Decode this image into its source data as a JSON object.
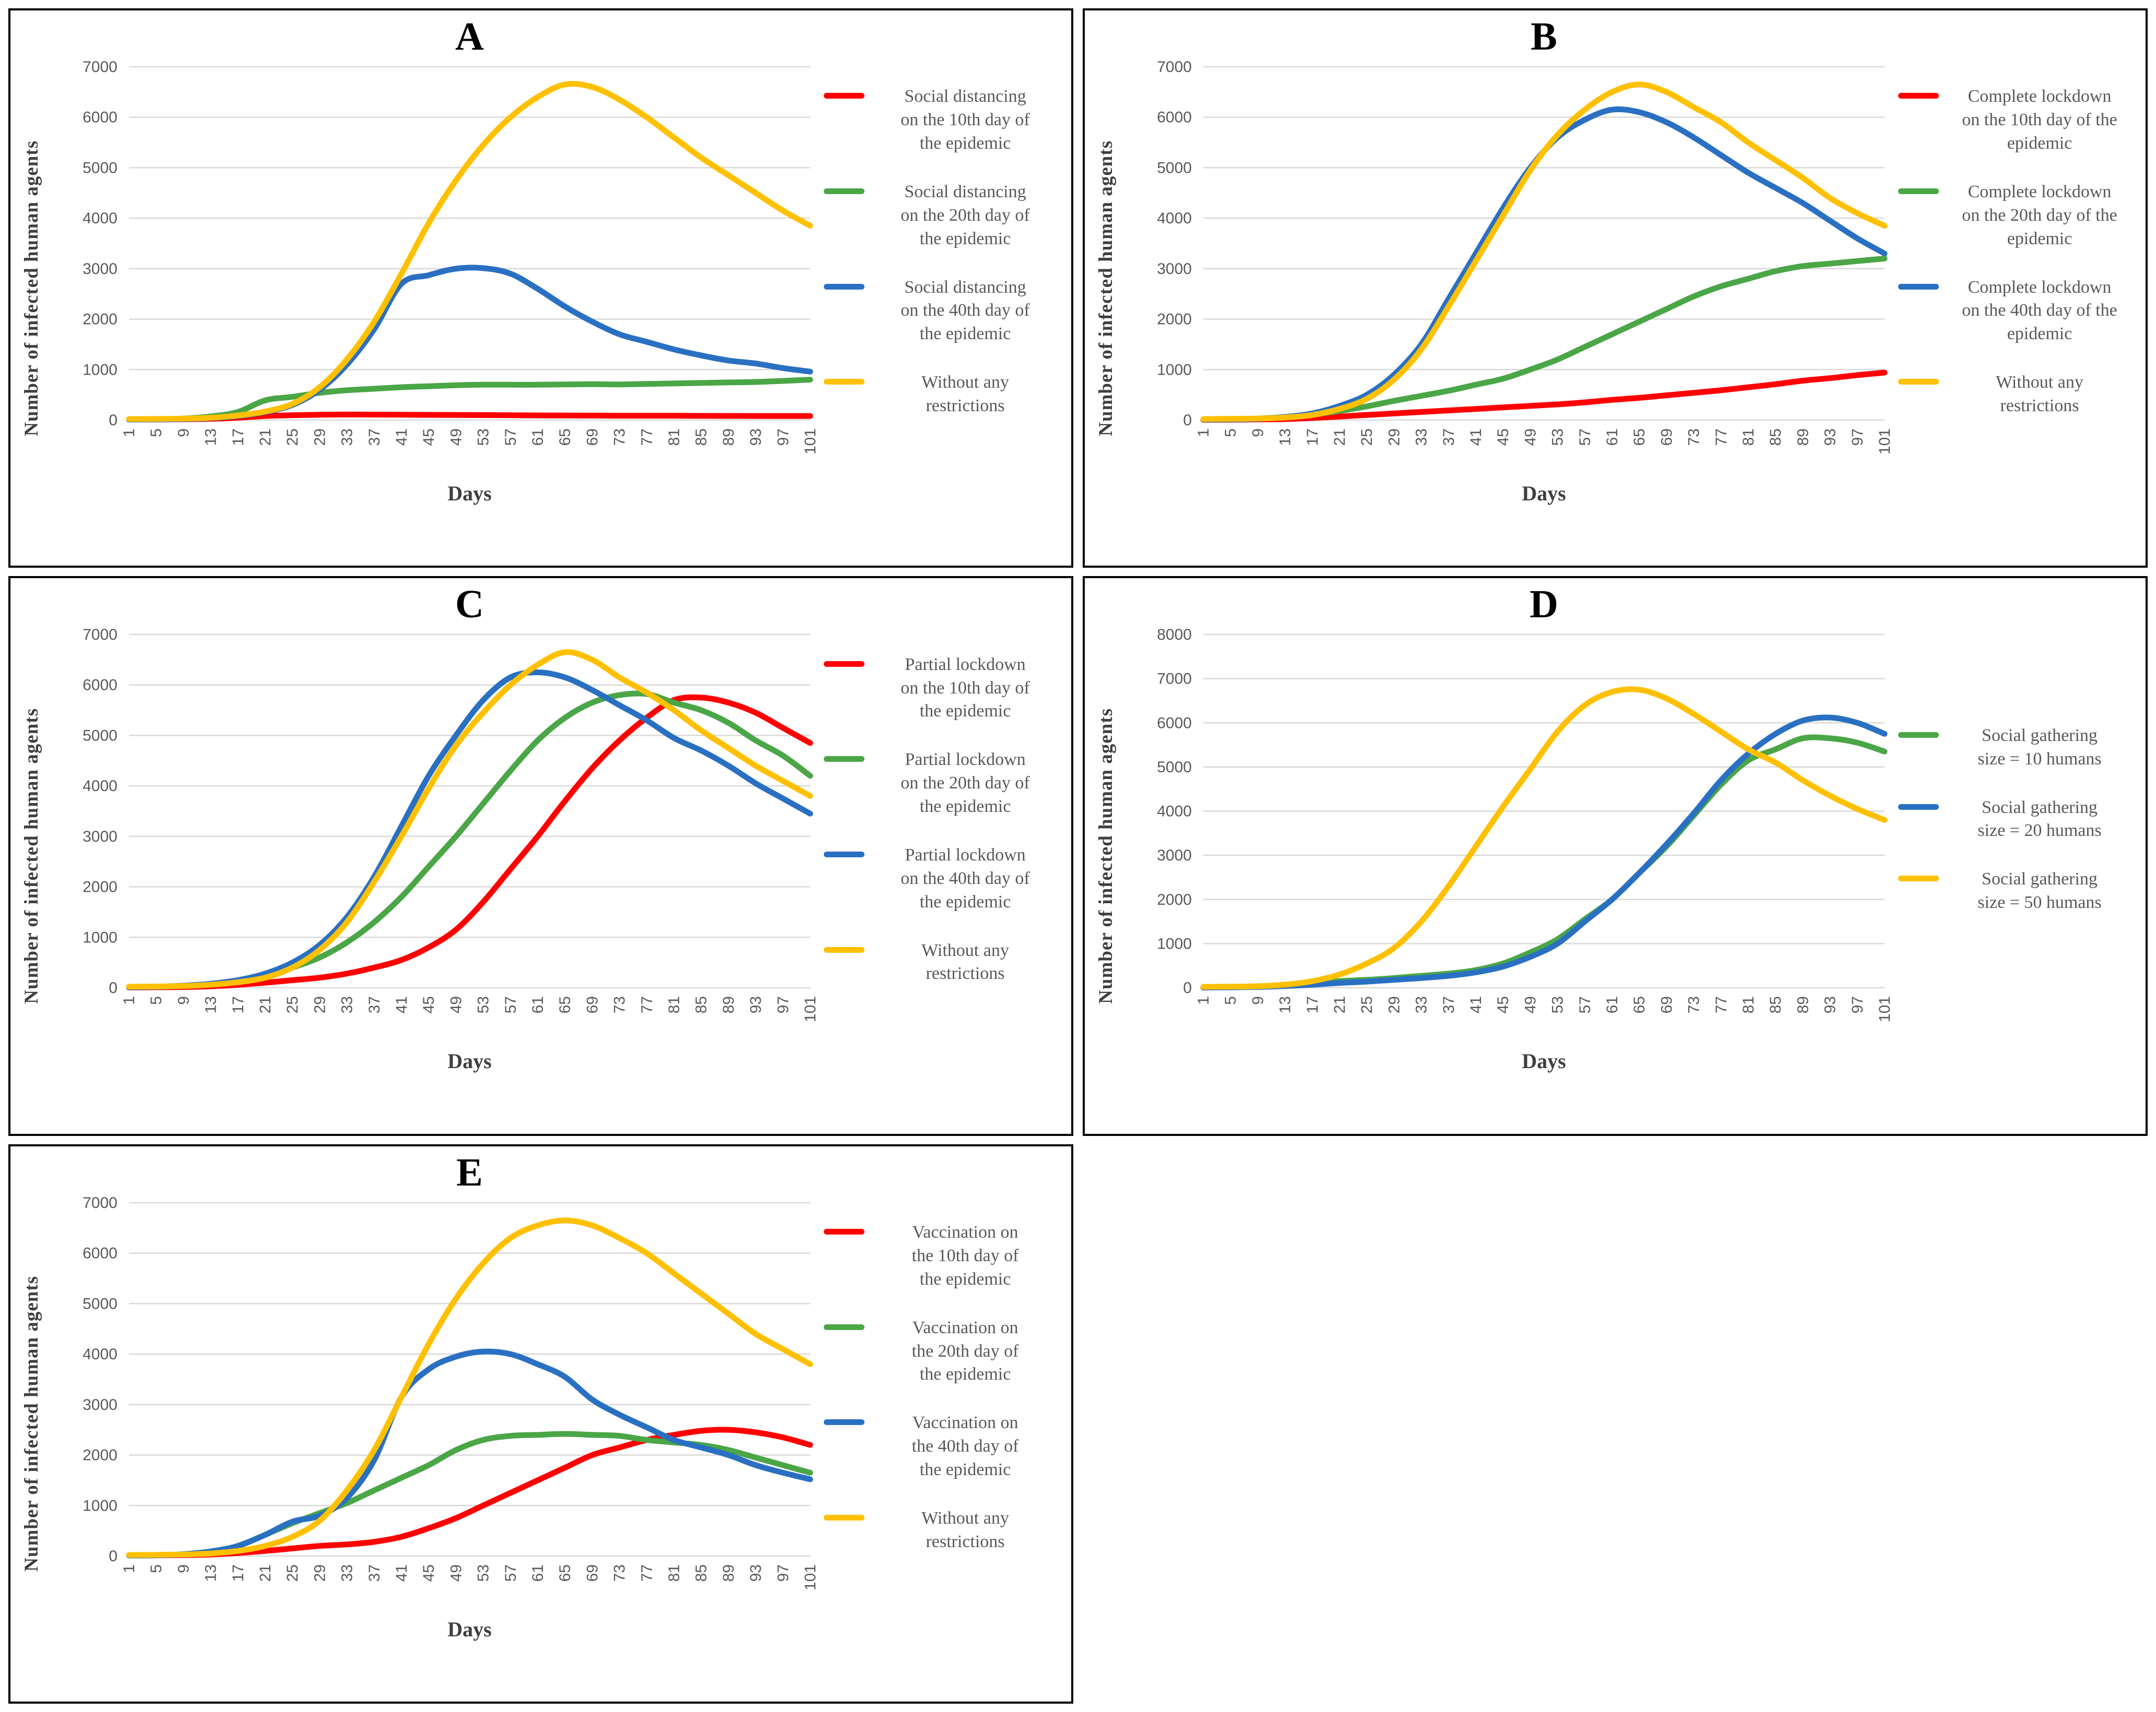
{
  "figure": {
    "ylabel": "Number of infected human agents",
    "xlabel": "Days",
    "panel_letters": [
      "A",
      "B",
      "C",
      "D",
      "E"
    ]
  },
  "palette": {
    "red": "#FF0000",
    "green": "#4AA646",
    "blue": "#2A70C2",
    "yellow": "#FFC000",
    "gridline": "#D9D9D9",
    "tick_text": "#595959",
    "axis_title_text": "#3F3F3F",
    "panel_letter_text": "#000000",
    "panel_border": "#000000"
  },
  "chart_data": [
    {
      "title": "A",
      "type": "line",
      "xlabel": "Days",
      "ylabel": "Number of infected human agents",
      "xlim": [
        1,
        101
      ],
      "ylim": [
        0,
        7000
      ],
      "ytick_step": 1000,
      "grid": true,
      "legend_position": "right",
      "x": [
        1,
        5,
        9,
        13,
        17,
        21,
        25,
        29,
        33,
        37,
        41,
        45,
        49,
        53,
        57,
        61,
        65,
        69,
        73,
        77,
        81,
        85,
        89,
        93,
        97,
        101
      ],
      "series": [
        {
          "name": "Social distancing\non the 10th day of\nthe epidemic",
          "color": "#FF0000",
          "values": [
            10,
            12,
            16,
            25,
            45,
            80,
            95,
            105,
            110,
            108,
            105,
            102,
            100,
            98,
            95,
            92,
            90,
            88,
            86,
            85,
            85,
            83,
            82,
            81,
            80,
            80
          ]
        },
        {
          "name": "Social distancing\non the 20th day of\nthe epidemic",
          "color": "#4AA646",
          "values": [
            10,
            15,
            30,
            70,
            160,
            390,
            460,
            540,
            590,
            620,
            650,
            670,
            690,
            700,
            700,
            700,
            705,
            710,
            705,
            715,
            725,
            735,
            745,
            755,
            775,
            800
          ]
        },
        {
          "name": "Social distancing\non the 40th day of\nthe epidemic",
          "color": "#2A70C2",
          "values": [
            10,
            12,
            20,
            40,
            80,
            160,
            300,
            600,
            1100,
            1800,
            2700,
            2870,
            3000,
            3010,
            2900,
            2600,
            2250,
            1950,
            1700,
            1550,
            1400,
            1280,
            1180,
            1120,
            1030,
            960
          ]
        },
        {
          "name": "Without any\nrestrictions",
          "color": "#FFC000",
          "values": [
            20,
            22,
            28,
            45,
            90,
            170,
            320,
            650,
            1200,
            1950,
            2900,
            3900,
            4750,
            5450,
            6000,
            6400,
            6650,
            6600,
            6350,
            6000,
            5600,
            5200,
            4850,
            4500,
            4150,
            3850
          ]
        }
      ]
    },
    {
      "title": "B",
      "type": "line",
      "xlabel": "Days",
      "ylabel": "Number of infected human agents",
      "xlim": [
        1,
        101
      ],
      "ylim": [
        0,
        7000
      ],
      "ytick_step": 1000,
      "grid": true,
      "legend_position": "right",
      "x": [
        1,
        5,
        9,
        13,
        17,
        21,
        25,
        29,
        33,
        37,
        41,
        45,
        49,
        53,
        57,
        61,
        65,
        69,
        73,
        77,
        81,
        85,
        89,
        93,
        97,
        101
      ],
      "series": [
        {
          "name": "Complete lockdown\non the 10th day of the\nepidemic",
          "color": "#FF0000",
          "values": [
            5,
            8,
            12,
            20,
            40,
            70,
            100,
            130,
            160,
            190,
            220,
            250,
            280,
            310,
            350,
            400,
            440,
            490,
            540,
            590,
            650,
            710,
            780,
            830,
            890,
            940
          ]
        },
        {
          "name": "Complete lockdown\non the 20th day of the\nepidemic",
          "color": "#4AA646",
          "values": [
            10,
            15,
            30,
            60,
            110,
            180,
            270,
            380,
            480,
            580,
            700,
            820,
            1000,
            1200,
            1450,
            1700,
            1950,
            2200,
            2450,
            2650,
            2800,
            2950,
            3050,
            3100,
            3150,
            3200
          ]
        },
        {
          "name": "Complete lockdown\non the 40th day of the\nepidemic",
          "color": "#2A70C2",
          "values": [
            10,
            15,
            25,
            60,
            130,
            280,
            500,
            900,
            1500,
            2400,
            3300,
            4200,
            5000,
            5600,
            5950,
            6150,
            6100,
            5900,
            5600,
            5250,
            4900,
            4600,
            4300,
            3950,
            3600,
            3300
          ]
        },
        {
          "name": "Without any\nrestrictions",
          "color": "#FFC000",
          "values": [
            20,
            25,
            30,
            50,
            100,
            220,
            420,
            800,
            1400,
            2250,
            3150,
            4050,
            4950,
            5650,
            6150,
            6500,
            6650,
            6500,
            6200,
            5900,
            5500,
            5150,
            4800,
            4400,
            4100,
            3850
          ]
        }
      ]
    },
    {
      "title": "C",
      "type": "line",
      "xlabel": "Days",
      "ylabel": "Number of infected human agents",
      "xlim": [
        1,
        101
      ],
      "ylim": [
        0,
        7000
      ],
      "ytick_step": 1000,
      "grid": true,
      "legend_position": "right",
      "x": [
        1,
        5,
        9,
        13,
        17,
        21,
        25,
        29,
        33,
        37,
        41,
        45,
        49,
        53,
        57,
        61,
        65,
        69,
        73,
        77,
        81,
        85,
        89,
        93,
        97,
        101
      ],
      "series": [
        {
          "name": "Partial lockdown\non the 10th day of\nthe epidemic",
          "color": "#FF0000",
          "values": [
            5,
            10,
            15,
            30,
            60,
            100,
            150,
            200,
            280,
            400,
            550,
            800,
            1150,
            1700,
            2350,
            3000,
            3700,
            4350,
            4900,
            5350,
            5700,
            5750,
            5650,
            5450,
            5150,
            4850
          ]
        },
        {
          "name": "Partial lockdown\non the 20th day of\nthe epidemic",
          "color": "#4AA646",
          "values": [
            10,
            20,
            40,
            70,
            130,
            230,
            400,
            600,
            900,
            1300,
            1800,
            2400,
            3000,
            3650,
            4300,
            4900,
            5350,
            5650,
            5800,
            5820,
            5650,
            5500,
            5250,
            4900,
            4600,
            4200
          ]
        },
        {
          "name": "Partial lockdown\non the 40th day of\nthe epidemic",
          "color": "#2A70C2",
          "values": [
            10,
            20,
            40,
            80,
            150,
            280,
            500,
            850,
            1400,
            2200,
            3200,
            4200,
            5000,
            5700,
            6150,
            6250,
            6150,
            5900,
            5600,
            5300,
            4950,
            4700,
            4400,
            4050,
            3750,
            3450
          ]
        },
        {
          "name": "Without any\nrestrictions",
          "color": "#FFC000",
          "values": [
            20,
            25,
            35,
            60,
            110,
            200,
            400,
            750,
            1300,
            2100,
            3000,
            3950,
            4800,
            5450,
            6000,
            6400,
            6650,
            6500,
            6150,
            5850,
            5500,
            5100,
            4750,
            4400,
            4100,
            3800
          ]
        }
      ]
    },
    {
      "title": "D",
      "type": "line",
      "xlabel": "Days",
      "ylabel": "Number of infected human agents",
      "xlim": [
        1,
        101
      ],
      "ylim": [
        0,
        8000
      ],
      "ytick_step": 1000,
      "grid": true,
      "legend_position": "right",
      "x": [
        1,
        5,
        9,
        13,
        17,
        21,
        25,
        29,
        33,
        37,
        41,
        45,
        49,
        53,
        57,
        61,
        65,
        69,
        73,
        77,
        81,
        85,
        89,
        93,
        97,
        101
      ],
      "series": [
        {
          "name": "Social gathering\nsize = 10 humans",
          "color": "#4AA646",
          "values": [
            10,
            15,
            25,
            60,
            100,
            150,
            180,
            220,
            270,
            320,
            400,
            550,
            800,
            1100,
            1550,
            2000,
            2600,
            3200,
            3900,
            4600,
            5150,
            5400,
            5650,
            5650,
            5550,
            5350
          ]
        },
        {
          "name": "Social gathering\nsize = 20 humans",
          "color": "#2A70C2",
          "values": [
            5,
            10,
            20,
            40,
            70,
            110,
            140,
            180,
            220,
            270,
            350,
            480,
            700,
            1000,
            1500,
            2000,
            2600,
            3250,
            3950,
            4700,
            5300,
            5750,
            6050,
            6120,
            6000,
            5750
          ]
        },
        {
          "name": "Social gathering\nsize = 50 humans",
          "color": "#FFC000",
          "values": [
            20,
            25,
            35,
            70,
            150,
            300,
            550,
            900,
            1500,
            2300,
            3200,
            4100,
            4950,
            5800,
            6400,
            6700,
            6750,
            6550,
            6200,
            5800,
            5400,
            5100,
            4700,
            4350,
            4050,
            3800
          ]
        }
      ]
    },
    {
      "title": "E",
      "type": "line",
      "xlabel": "Days",
      "ylabel": "Number of infected human agents",
      "xlim": [
        1,
        101
      ],
      "ylim": [
        0,
        7000
      ],
      "ytick_step": 1000,
      "grid": true,
      "legend_position": "right",
      "x": [
        1,
        5,
        9,
        13,
        17,
        21,
        25,
        29,
        33,
        37,
        41,
        45,
        49,
        53,
        57,
        61,
        65,
        69,
        73,
        77,
        81,
        85,
        89,
        93,
        97,
        101
      ],
      "series": [
        {
          "name": "Vaccination on\nthe 10th day of\nthe epidemic",
          "color": "#FF0000",
          "values": [
            10,
            12,
            18,
            30,
            60,
            100,
            150,
            200,
            230,
            280,
            380,
            550,
            750,
            1000,
            1250,
            1500,
            1750,
            2000,
            2150,
            2300,
            2400,
            2480,
            2500,
            2450,
            2350,
            2200
          ]
        },
        {
          "name": "Vaccination on\nthe 20th day of\nthe epidemic",
          "color": "#4AA646",
          "values": [
            10,
            15,
            35,
            90,
            200,
            420,
            650,
            850,
            1050,
            1300,
            1550,
            1800,
            2100,
            2300,
            2380,
            2400,
            2420,
            2400,
            2380,
            2300,
            2250,
            2200,
            2100,
            1950,
            1800,
            1650
          ]
        },
        {
          "name": "Vaccination on\nthe 40th day of\nthe epidemic",
          "color": "#2A70C2",
          "values": [
            10,
            15,
            35,
            90,
            200,
            420,
            680,
            800,
            1150,
            1900,
            3150,
            3700,
            3950,
            4050,
            4000,
            3800,
            3550,
            3100,
            2800,
            2550,
            2300,
            2150,
            2000,
            1800,
            1650,
            1520
          ]
        },
        {
          "name": "Without any\nrestrictions",
          "color": "#FFC000",
          "values": [
            20,
            22,
            30,
            50,
            100,
            200,
            380,
            700,
            1300,
            2100,
            3150,
            4200,
            5100,
            5800,
            6300,
            6550,
            6650,
            6550,
            6300,
            6000,
            5600,
            5200,
            4800,
            4400,
            4100,
            3800
          ]
        }
      ]
    }
  ]
}
